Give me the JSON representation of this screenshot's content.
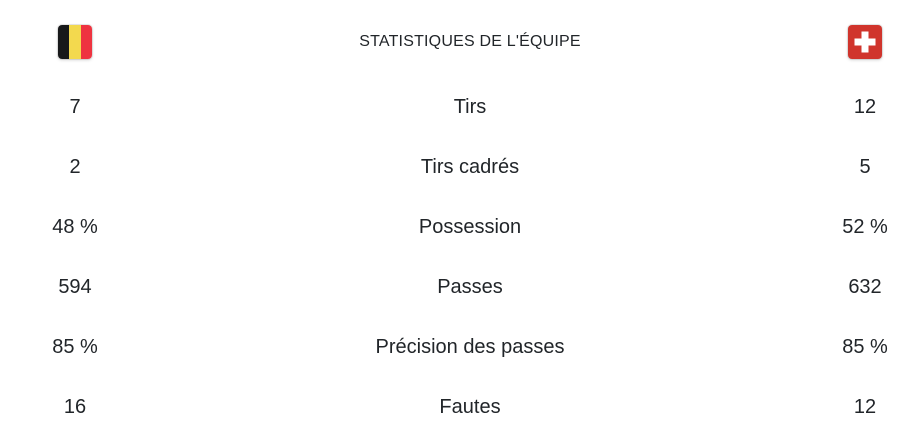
{
  "title": "STATISTIQUES DE L'ÉQUIPE",
  "teams": {
    "home": {
      "name": "Belgique",
      "flag_icon": "belgium-flag-icon"
    },
    "away": {
      "name": "Suisse",
      "flag_icon": "switzerland-flag-icon"
    }
  },
  "stats": [
    {
      "label": "Tirs",
      "home": "7",
      "away": "12"
    },
    {
      "label": "Tirs cadrés",
      "home": "2",
      "away": "5"
    },
    {
      "label": "Possession",
      "home": "48 %",
      "away": "52 %"
    },
    {
      "label": "Passes",
      "home": "594",
      "away": "632"
    },
    {
      "label": "Précision des passes",
      "home": "85 %",
      "away": "85 %"
    },
    {
      "label": "Fautes",
      "home": "16",
      "away": "12"
    }
  ],
  "colors": {
    "text": "#212529",
    "background": "#ffffff",
    "belgium_black": "#17181a",
    "belgium_yellow": "#f3d94e",
    "belgium_red": "#ee3340",
    "swiss_red": "#d0342c",
    "swiss_cross": "#ffffff"
  }
}
